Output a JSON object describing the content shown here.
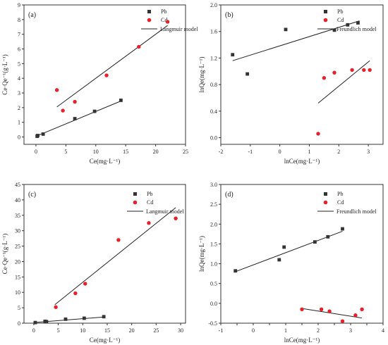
{
  "colors": {
    "pb": "#333333",
    "cd": "#e8202a",
    "line": "#222222",
    "axis": "#333333"
  },
  "chart_data": [
    {
      "type": "scatter",
      "panel_label": "(a)",
      "xlabel": "Ce(mg·L⁻¹)",
      "ylabel": "Ce·Qe⁻¹(g·L⁻¹)",
      "xlim": [
        -2,
        25
      ],
      "ylim": [
        -0.5,
        9
      ],
      "xticks": [
        0,
        5,
        10,
        15,
        20,
        25
      ],
      "yticks": [
        0,
        1,
        2,
        3,
        4,
        5,
        6,
        7,
        8,
        9
      ],
      "legend": {
        "placement": "top-right",
        "entries": [
          "Pb",
          "Cd",
          "Langmuir model"
        ]
      },
      "series": [
        {
          "name": "Pb",
          "marker": "square",
          "points": [
            [
              0.2,
              0.05
            ],
            [
              0.3,
              0.1
            ],
            [
              1.2,
              0.2
            ],
            [
              6.5,
              1.25
            ],
            [
              9.8,
              1.75
            ],
            [
              14.2,
              2.5
            ]
          ]
        },
        {
          "name": "Cd",
          "marker": "circle",
          "points": [
            [
              3.5,
              3.2
            ],
            [
              4.5,
              1.8
            ],
            [
              6.5,
              2.4
            ],
            [
              11.8,
              4.2
            ],
            [
              17.2,
              6.15
            ],
            [
              22.0,
              7.85
            ]
          ]
        }
      ],
      "fits": [
        {
          "series": "Pb",
          "from": [
            0,
            0.05
          ],
          "to": [
            14.2,
            2.45
          ]
        },
        {
          "series": "Cd",
          "from": [
            3.5,
            2.05
          ],
          "to": [
            22.0,
            7.6
          ]
        }
      ]
    },
    {
      "type": "scatter",
      "panel_label": "(b)",
      "xlabel": "lnCe(mg·L⁻¹)",
      "ylabel": "lnQe(mg·L⁻¹)",
      "xlim": [
        -2,
        3.5
      ],
      "ylim": [
        -0.1,
        2.0
      ],
      "xticks": [
        -2,
        -1,
        0,
        1,
        2,
        3
      ],
      "yticks": [
        0.0,
        0.4,
        0.8,
        1.2,
        1.6,
        2.0
      ],
      "legend": {
        "placement": "top-right",
        "entries": [
          "Pb",
          "Cd",
          "Freundlich model"
        ]
      },
      "series": [
        {
          "name": "Pb",
          "marker": "square",
          "points": [
            [
              -1.6,
              1.25
            ],
            [
              -1.1,
              0.96
            ],
            [
              0.2,
              1.63
            ],
            [
              1.85,
              1.62
            ],
            [
              2.3,
              1.7
            ],
            [
              2.65,
              1.73
            ]
          ]
        },
        {
          "name": "Cd",
          "marker": "circle",
          "points": [
            [
              1.3,
              0.06
            ],
            [
              1.5,
              0.9
            ],
            [
              1.85,
              0.98
            ],
            [
              2.45,
              1.02
            ],
            [
              2.85,
              1.02
            ],
            [
              3.05,
              1.02
            ]
          ]
        }
      ],
      "fits": [
        {
          "series": "Pb",
          "from": [
            -1.6,
            1.16
          ],
          "to": [
            2.7,
            1.76
          ]
        },
        {
          "series": "Cd",
          "from": [
            1.3,
            0.52
          ],
          "to": [
            3.05,
            1.16
          ]
        }
      ]
    },
    {
      "type": "scatter",
      "panel_label": "(c)",
      "xlabel": "Ce(mg·L⁻¹)",
      "ylabel": "Ce·Qe⁻¹(g·L⁻¹)",
      "xlim": [
        -2,
        31
      ],
      "ylim": [
        0,
        45
      ],
      "xticks": [
        0,
        5,
        10,
        15,
        20,
        25,
        30
      ],
      "yticks": [
        0,
        5,
        10,
        15,
        20,
        25,
        30,
        35,
        40,
        45
      ],
      "legend": {
        "placement": "top-right",
        "entries": [
          "Pb",
          "Cd",
          "Langmuir model"
        ]
      },
      "series": [
        {
          "name": "Pb",
          "marker": "square",
          "points": [
            [
              0.3,
              0.2
            ],
            [
              2.3,
              0.6
            ],
            [
              2.6,
              0.5
            ],
            [
              6.5,
              1.3
            ],
            [
              10.3,
              1.6
            ],
            [
              14.3,
              2.1
            ]
          ]
        },
        {
          "name": "Cd",
          "marker": "circle",
          "points": [
            [
              4.5,
              5.2
            ],
            [
              8.5,
              9.7
            ],
            [
              10.5,
              12.8
            ],
            [
              17.3,
              27.0
            ],
            [
              23.5,
              32.5
            ],
            [
              29.0,
              34.0
            ]
          ]
        }
      ],
      "fits": [
        {
          "series": "Pb",
          "from": [
            0,
            0.2
          ],
          "to": [
            14.3,
            2.0
          ]
        },
        {
          "series": "Cd",
          "from": [
            4.3,
            6.0
          ],
          "to": [
            29.0,
            37.5
          ]
        }
      ]
    },
    {
      "type": "scatter",
      "panel_label": "(d)",
      "xlabel": "lnCe(mg·L⁻¹)",
      "ylabel": "lnQe(mg·L⁻¹)",
      "xlim": [
        -1,
        4
      ],
      "ylim": [
        -0.5,
        3.0
      ],
      "xticks": [
        -1,
        -0.5,
        0,
        0.5,
        1,
        1.5,
        2,
        2.5,
        3,
        3.5,
        4
      ],
      "xticklabels": [
        "-1",
        "",
        "0",
        "",
        "1",
        "",
        "2",
        "",
        "3",
        "",
        "4"
      ],
      "yticks": [
        -0.5,
        0.0,
        0.5,
        1.0,
        1.5,
        2.0,
        2.5,
        3.0
      ],
      "legend": {
        "placement": "top-right",
        "entries": [
          "Pb",
          "Cd",
          "Freundlich model"
        ]
      },
      "series": [
        {
          "name": "Pb",
          "marker": "square",
          "points": [
            [
              -0.55,
              0.82
            ],
            [
              0.8,
              1.1
            ],
            [
              0.95,
              1.42
            ],
            [
              1.9,
              1.55
            ],
            [
              2.3,
              1.68
            ],
            [
              2.75,
              1.88
            ]
          ]
        },
        {
          "name": "Cd",
          "marker": "circle",
          "points": [
            [
              1.5,
              -0.15
            ],
            [
              2.1,
              -0.15
            ],
            [
              2.35,
              -0.2
            ],
            [
              2.75,
              -0.45
            ],
            [
              3.15,
              -0.3
            ],
            [
              3.35,
              -0.15
            ]
          ]
        }
      ],
      "fits": [
        {
          "series": "Pb",
          "from": [
            -0.55,
            0.8
          ],
          "to": [
            2.75,
            1.82
          ]
        },
        {
          "series": "Cd",
          "from": [
            1.5,
            -0.13
          ],
          "to": [
            3.35,
            -0.37
          ]
        }
      ]
    }
  ]
}
